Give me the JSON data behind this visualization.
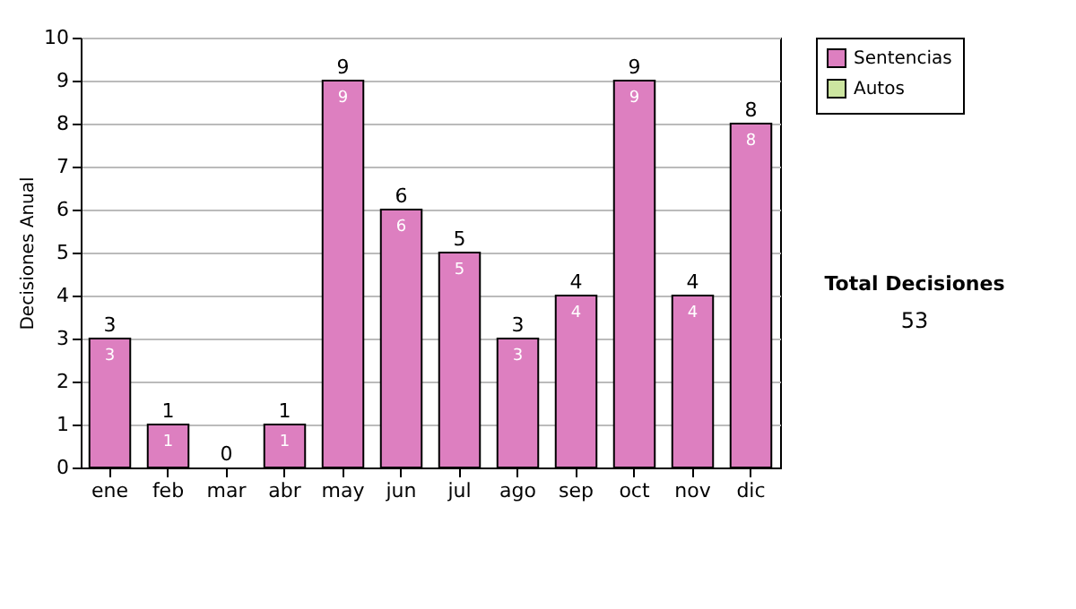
{
  "chart_data": {
    "type": "bar",
    "stacked": true,
    "ylabel": "Decisiones Anual",
    "categories": [
      "ene",
      "feb",
      "mar",
      "abr",
      "may",
      "jun",
      "jul",
      "ago",
      "sep",
      "oct",
      "nov",
      "dic"
    ],
    "series": [
      {
        "name": "Sentencias",
        "color": "#dd7fc0",
        "values": [
          3,
          1,
          0,
          1,
          9,
          6,
          5,
          3,
          4,
          9,
          4,
          8
        ],
        "value_labels": [
          "3",
          "1",
          null,
          "1",
          "9",
          "6",
          "5",
          "3",
          "4",
          "9",
          "4",
          "8"
        ]
      },
      {
        "name": "Autos",
        "color": "#cce5a0",
        "values": [
          0,
          0,
          0,
          0,
          0,
          0,
          0,
          0,
          0,
          0,
          0,
          0
        ]
      }
    ],
    "totals": [
      "3",
      "1",
      "0",
      "1",
      "9",
      "6",
      "5",
      "3",
      "4",
      "9",
      "4",
      "8"
    ],
    "ylim": [
      0,
      10
    ],
    "yticks": [
      0,
      1,
      2,
      3,
      4,
      5,
      6,
      7,
      8,
      9,
      10
    ],
    "grid": "y",
    "legend": "right",
    "annotations": [
      "Total Decisiones",
      "53"
    ]
  }
}
